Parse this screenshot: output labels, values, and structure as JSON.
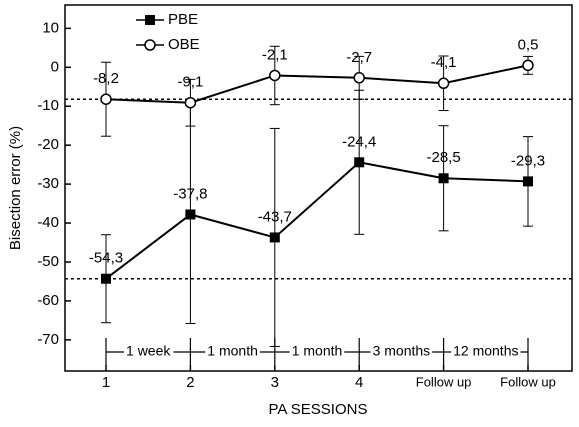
{
  "chart_data": {
    "type": "line",
    "y_label": "Bisection error (%)",
    "x_label": "PA SESSIONS",
    "categories": [
      "1",
      "2",
      "3",
      "4",
      "Follow up",
      "Follow up"
    ],
    "ylim": [
      -78,
      16
    ],
    "yticks": [
      10,
      0,
      -10,
      -20,
      -30,
      -40,
      -50,
      -60,
      -70
    ],
    "legend": "upper left",
    "series": [
      {
        "name": "PBE",
        "color": "#000000",
        "marker": "square",
        "values": [
          -54.3,
          -37.8,
          -43.7,
          -24.4,
          -28.5,
          -29.3
        ],
        "value_labels": [
          "-54,3",
          "-37,8",
          "-43,7",
          "-24,4",
          "-28,5",
          "-29,3"
        ],
        "errors": [
          11.3,
          28,
          28,
          18.5,
          13.5,
          11.5
        ]
      },
      {
        "name": "OBE",
        "color": "#000000",
        "marker": "circle",
        "values": [
          -8.2,
          -9.1,
          -2.1,
          -2.7,
          -4.1,
          0.5
        ],
        "value_labels": [
          "-8,2",
          "-9,1",
          "-2,1",
          "-2,7",
          "-4,1",
          "0,5"
        ],
        "errors": [
          9.5,
          6,
          7.5,
          5.5,
          7,
          2.3
        ]
      }
    ],
    "reference_lines": [
      -8.2,
      -54.3
    ],
    "interval_labels": [
      "1 week",
      "1 month",
      "1 month",
      "3 months",
      "12 months"
    ]
  }
}
